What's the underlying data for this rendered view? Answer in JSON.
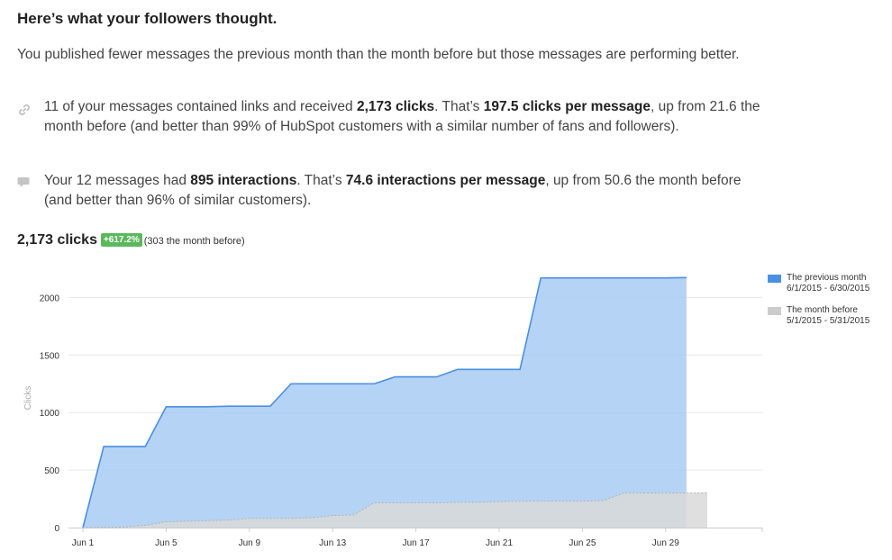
{
  "heading": "Here’s what your followers thought.",
  "intro": "You published fewer messages the previous month than the month before but those messages are performing better.",
  "stats": {
    "links": {
      "icon": "link-icon",
      "t1": "11 of your messages contained links and received ",
      "b1": "2,173 clicks",
      "t2": ". That’s ",
      "b2": "197.5 clicks per message",
      "t3": ", up from 21.6 the month before (and better than 99% of HubSpot customers with a similar number of fans and followers)."
    },
    "interactions": {
      "icon": "chat-bubble-icon",
      "t1": "Your 12 messages had ",
      "b1": "895 interactions",
      "t2": ". That’s ",
      "b2": "74.6 interactions per message",
      "t3": ", up from 50.6 the month before (and better than 96% of similar customers)."
    }
  },
  "clicks_summary": {
    "total": "2,173 clicks",
    "change": "+617.2%",
    "previous": "(303 the month before)"
  },
  "colors": {
    "previous_fill": "#a8cbf2",
    "previous_line": "#4a90e2",
    "before_fill": "#d9d9d9",
    "before_line": "#b3b3b3",
    "badge": "#5cb85c"
  },
  "chart_data": {
    "type": "area",
    "ylabel": "Clicks",
    "ylim": [
      0,
      2200
    ],
    "yticks": [
      0,
      500,
      1000,
      1500,
      2000
    ],
    "xtick_labels": [
      "Jun 1",
      "Jun 5",
      "Jun 9",
      "Jun 13",
      "Jun 17",
      "Jun 21",
      "Jun 25",
      "Jun 29"
    ],
    "xtick_days": [
      1,
      5,
      9,
      13,
      17,
      21,
      25,
      29
    ],
    "x_days": [
      1,
      2,
      3,
      4,
      5,
      6,
      7,
      8,
      9,
      10,
      11,
      12,
      13,
      14,
      15,
      16,
      17,
      18,
      19,
      20,
      21,
      22,
      23,
      24,
      25,
      26,
      27,
      28,
      29,
      30,
      31
    ],
    "series": [
      {
        "name": "The previous month",
        "range": "6/1/2015 - 6/30/2015",
        "values": [
          0,
          705,
          705,
          705,
          1050,
          1050,
          1050,
          1055,
          1055,
          1055,
          1250,
          1250,
          1250,
          1250,
          1250,
          1310,
          1310,
          1310,
          1375,
          1375,
          1375,
          1375,
          2170,
          2170,
          2170,
          2170,
          2170,
          2170,
          2170,
          2173,
          null
        ]
      },
      {
        "name": "The month before",
        "range": "5/1/2015 - 5/31/2015",
        "values": [
          0,
          0,
          5,
          20,
          50,
          55,
          60,
          65,
          80,
          80,
          80,
          85,
          105,
          110,
          215,
          215,
          215,
          215,
          220,
          220,
          225,
          230,
          230,
          230,
          230,
          235,
          300,
          300,
          300,
          300,
          303
        ]
      }
    ],
    "grid": true,
    "legend": "top-right"
  }
}
